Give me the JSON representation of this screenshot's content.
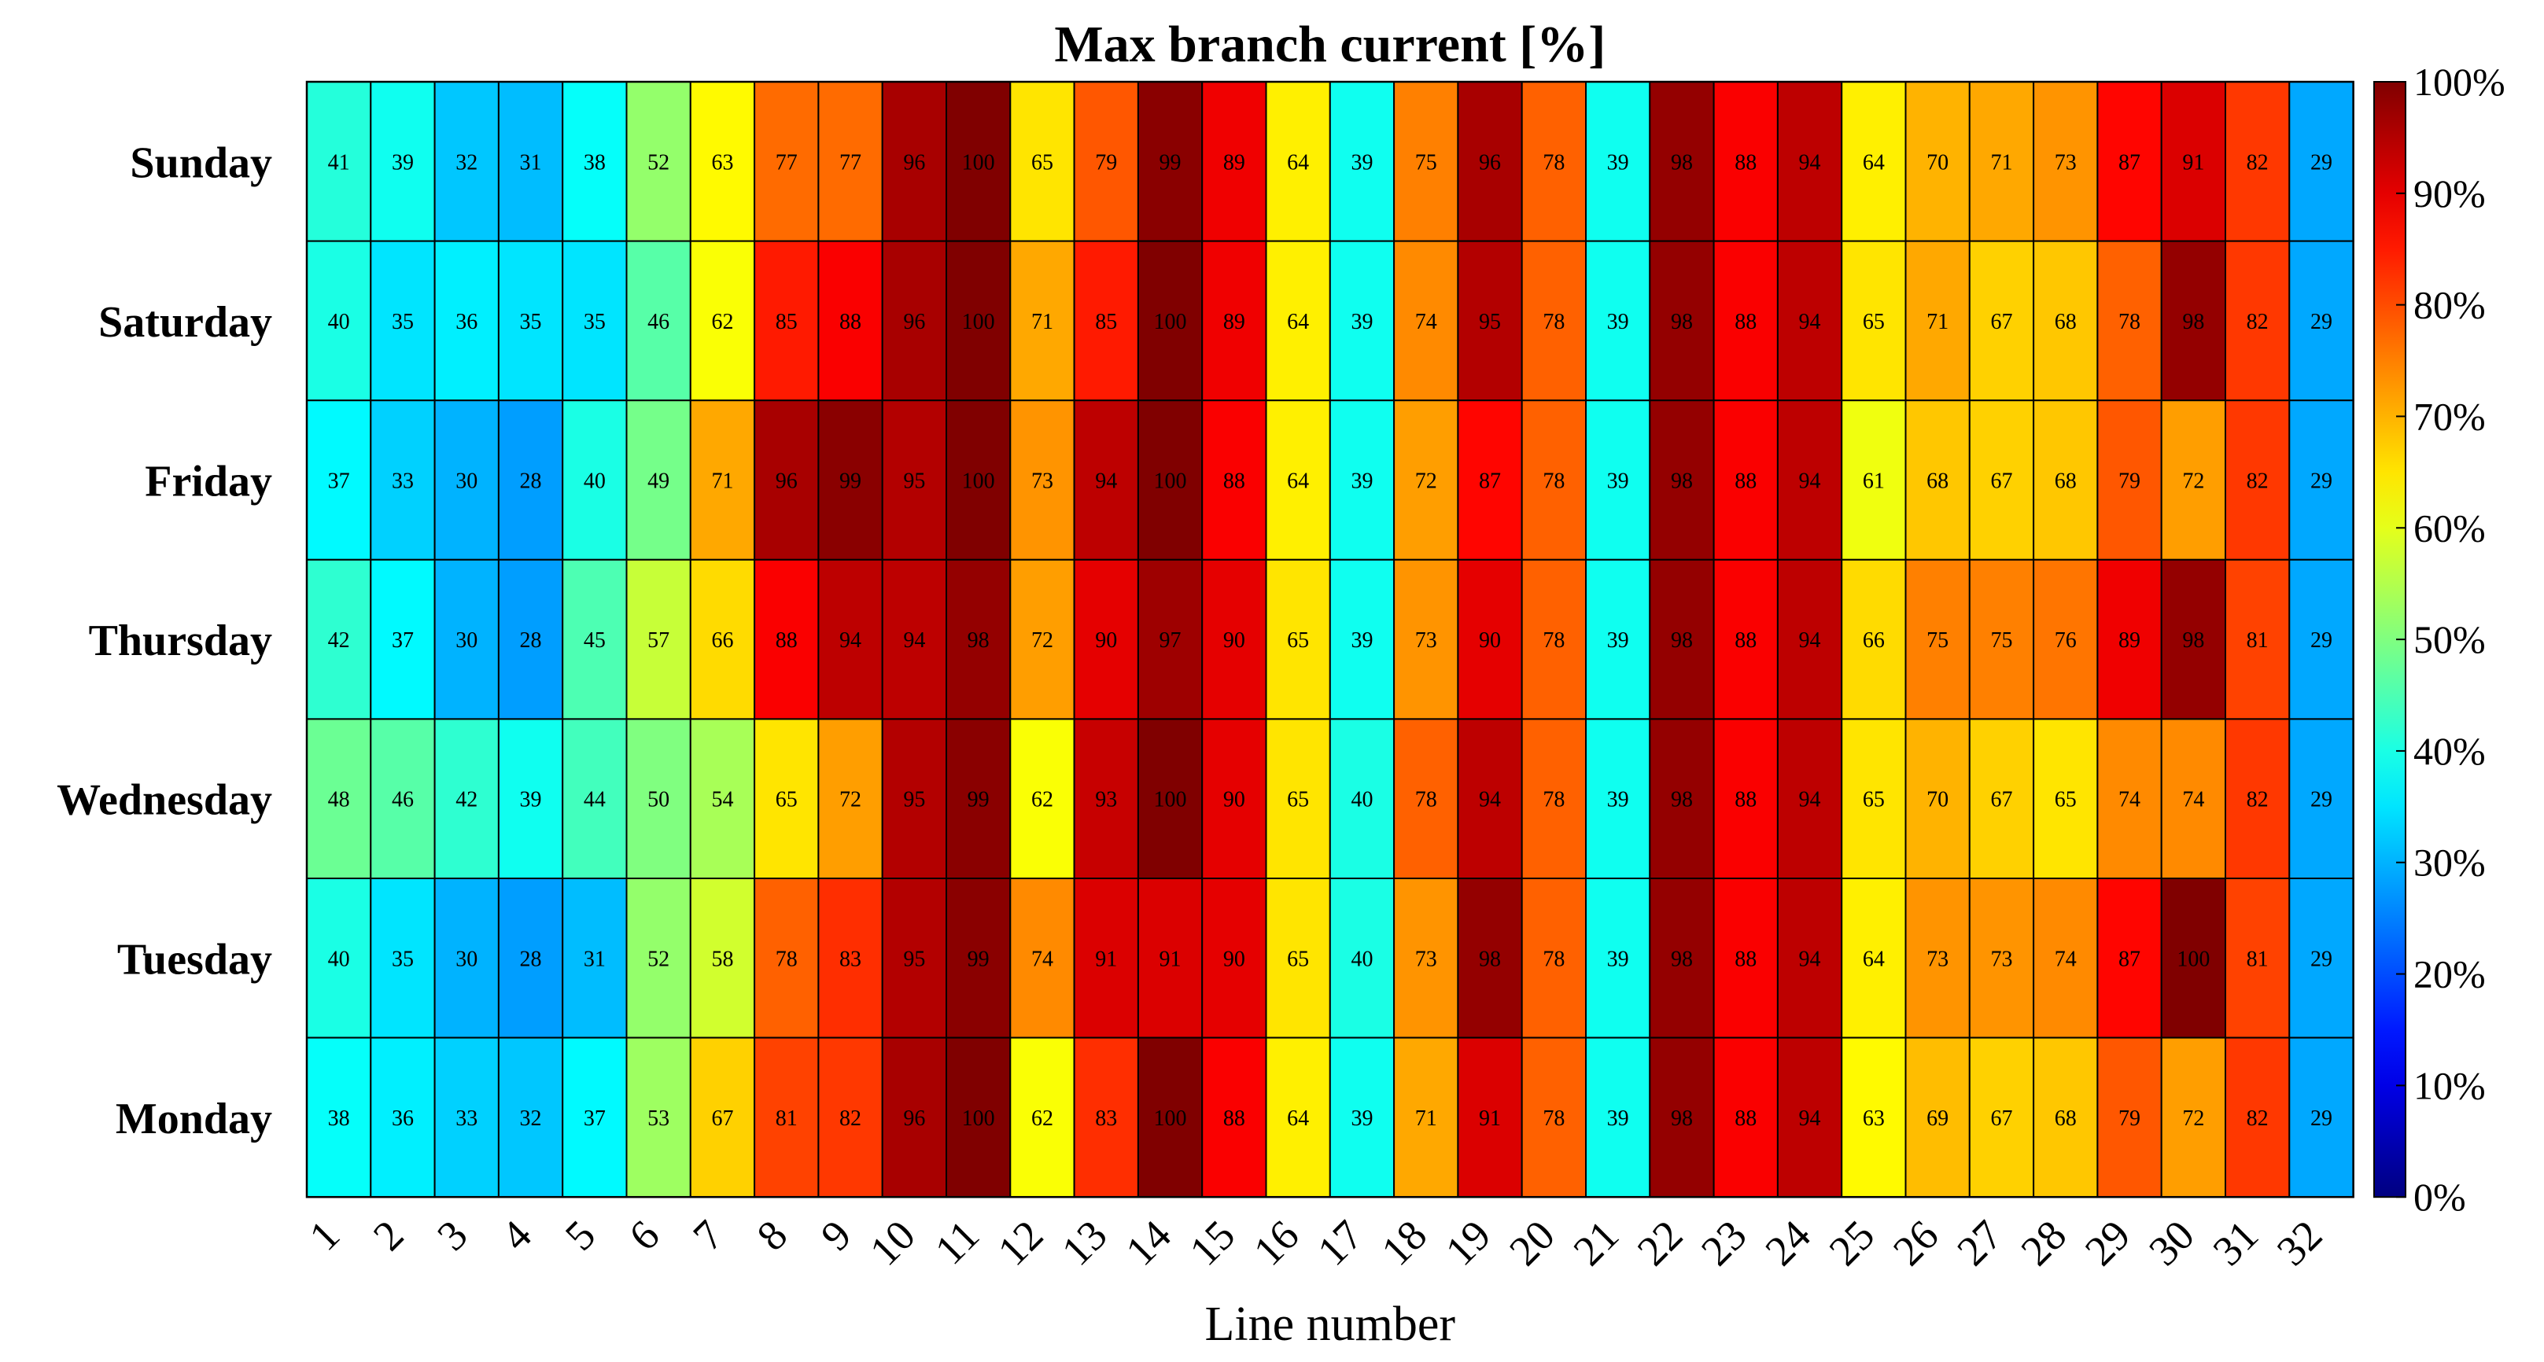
{
  "chart_data": {
    "type": "heatmap",
    "title": "Max branch current [%]",
    "xlabel": "Line number",
    "ylabel": "",
    "x_categories": [
      "1",
      "2",
      "3",
      "4",
      "5",
      "6",
      "7",
      "8",
      "9",
      "10",
      "11",
      "12",
      "13",
      "14",
      "15",
      "16",
      "17",
      "18",
      "19",
      "20",
      "21",
      "22",
      "23",
      "24",
      "25",
      "26",
      "27",
      "28",
      "29",
      "30",
      "31",
      "32"
    ],
    "y_categories": [
      "Sunday",
      "Saturday",
      "Friday",
      "Thursday",
      "Wednesday",
      "Tuesday",
      "Monday"
    ],
    "values": [
      [
        41,
        39,
        32,
        31,
        38,
        52,
        63,
        77,
        77,
        96,
        100,
        65,
        79,
        99,
        89,
        64,
        39,
        75,
        96,
        78,
        39,
        98,
        88,
        94,
        64,
        70,
        71,
        73,
        87,
        91,
        82,
        29
      ],
      [
        40,
        35,
        36,
        35,
        35,
        46,
        62,
        85,
        88,
        96,
        100,
        71,
        85,
        100,
        89,
        64,
        39,
        74,
        95,
        78,
        39,
        98,
        88,
        94,
        65,
        71,
        67,
        68,
        78,
        98,
        82,
        29
      ],
      [
        37,
        33,
        30,
        28,
        40,
        49,
        71,
        96,
        99,
        95,
        100,
        73,
        94,
        100,
        88,
        64,
        39,
        72,
        87,
        78,
        39,
        98,
        88,
        94,
        61,
        68,
        67,
        68,
        79,
        72,
        82,
        29
      ],
      [
        42,
        37,
        30,
        28,
        45,
        57,
        66,
        88,
        94,
        94,
        98,
        72,
        90,
        97,
        90,
        65,
        39,
        73,
        90,
        78,
        39,
        98,
        88,
        94,
        66,
        75,
        75,
        76,
        89,
        98,
        81,
        29
      ],
      [
        48,
        46,
        42,
        39,
        44,
        50,
        54,
        65,
        72,
        95,
        99,
        62,
        93,
        100,
        90,
        65,
        40,
        78,
        94,
        78,
        39,
        98,
        88,
        94,
        65,
        70,
        67,
        65,
        74,
        74,
        82,
        29
      ],
      [
        40,
        35,
        30,
        28,
        31,
        52,
        58,
        78,
        83,
        95,
        99,
        74,
        91,
        91,
        90,
        65,
        40,
        73,
        98,
        78,
        39,
        98,
        88,
        94,
        64,
        73,
        73,
        74,
        87,
        100,
        81,
        29
      ],
      [
        38,
        36,
        33,
        32,
        37,
        53,
        67,
        81,
        82,
        96,
        100,
        62,
        83,
        100,
        88,
        64,
        39,
        71,
        91,
        78,
        39,
        98,
        88,
        94,
        63,
        69,
        67,
        68,
        79,
        72,
        82,
        29
      ]
    ],
    "colormap": "jet",
    "value_range": [
      0,
      100
    ],
    "colorbar_ticks": [
      "0%",
      "10%",
      "20%",
      "30%",
      "40%",
      "50%",
      "60%",
      "70%",
      "80%",
      "90%",
      "100%"
    ],
    "grid": true,
    "cell_labels": true
  }
}
